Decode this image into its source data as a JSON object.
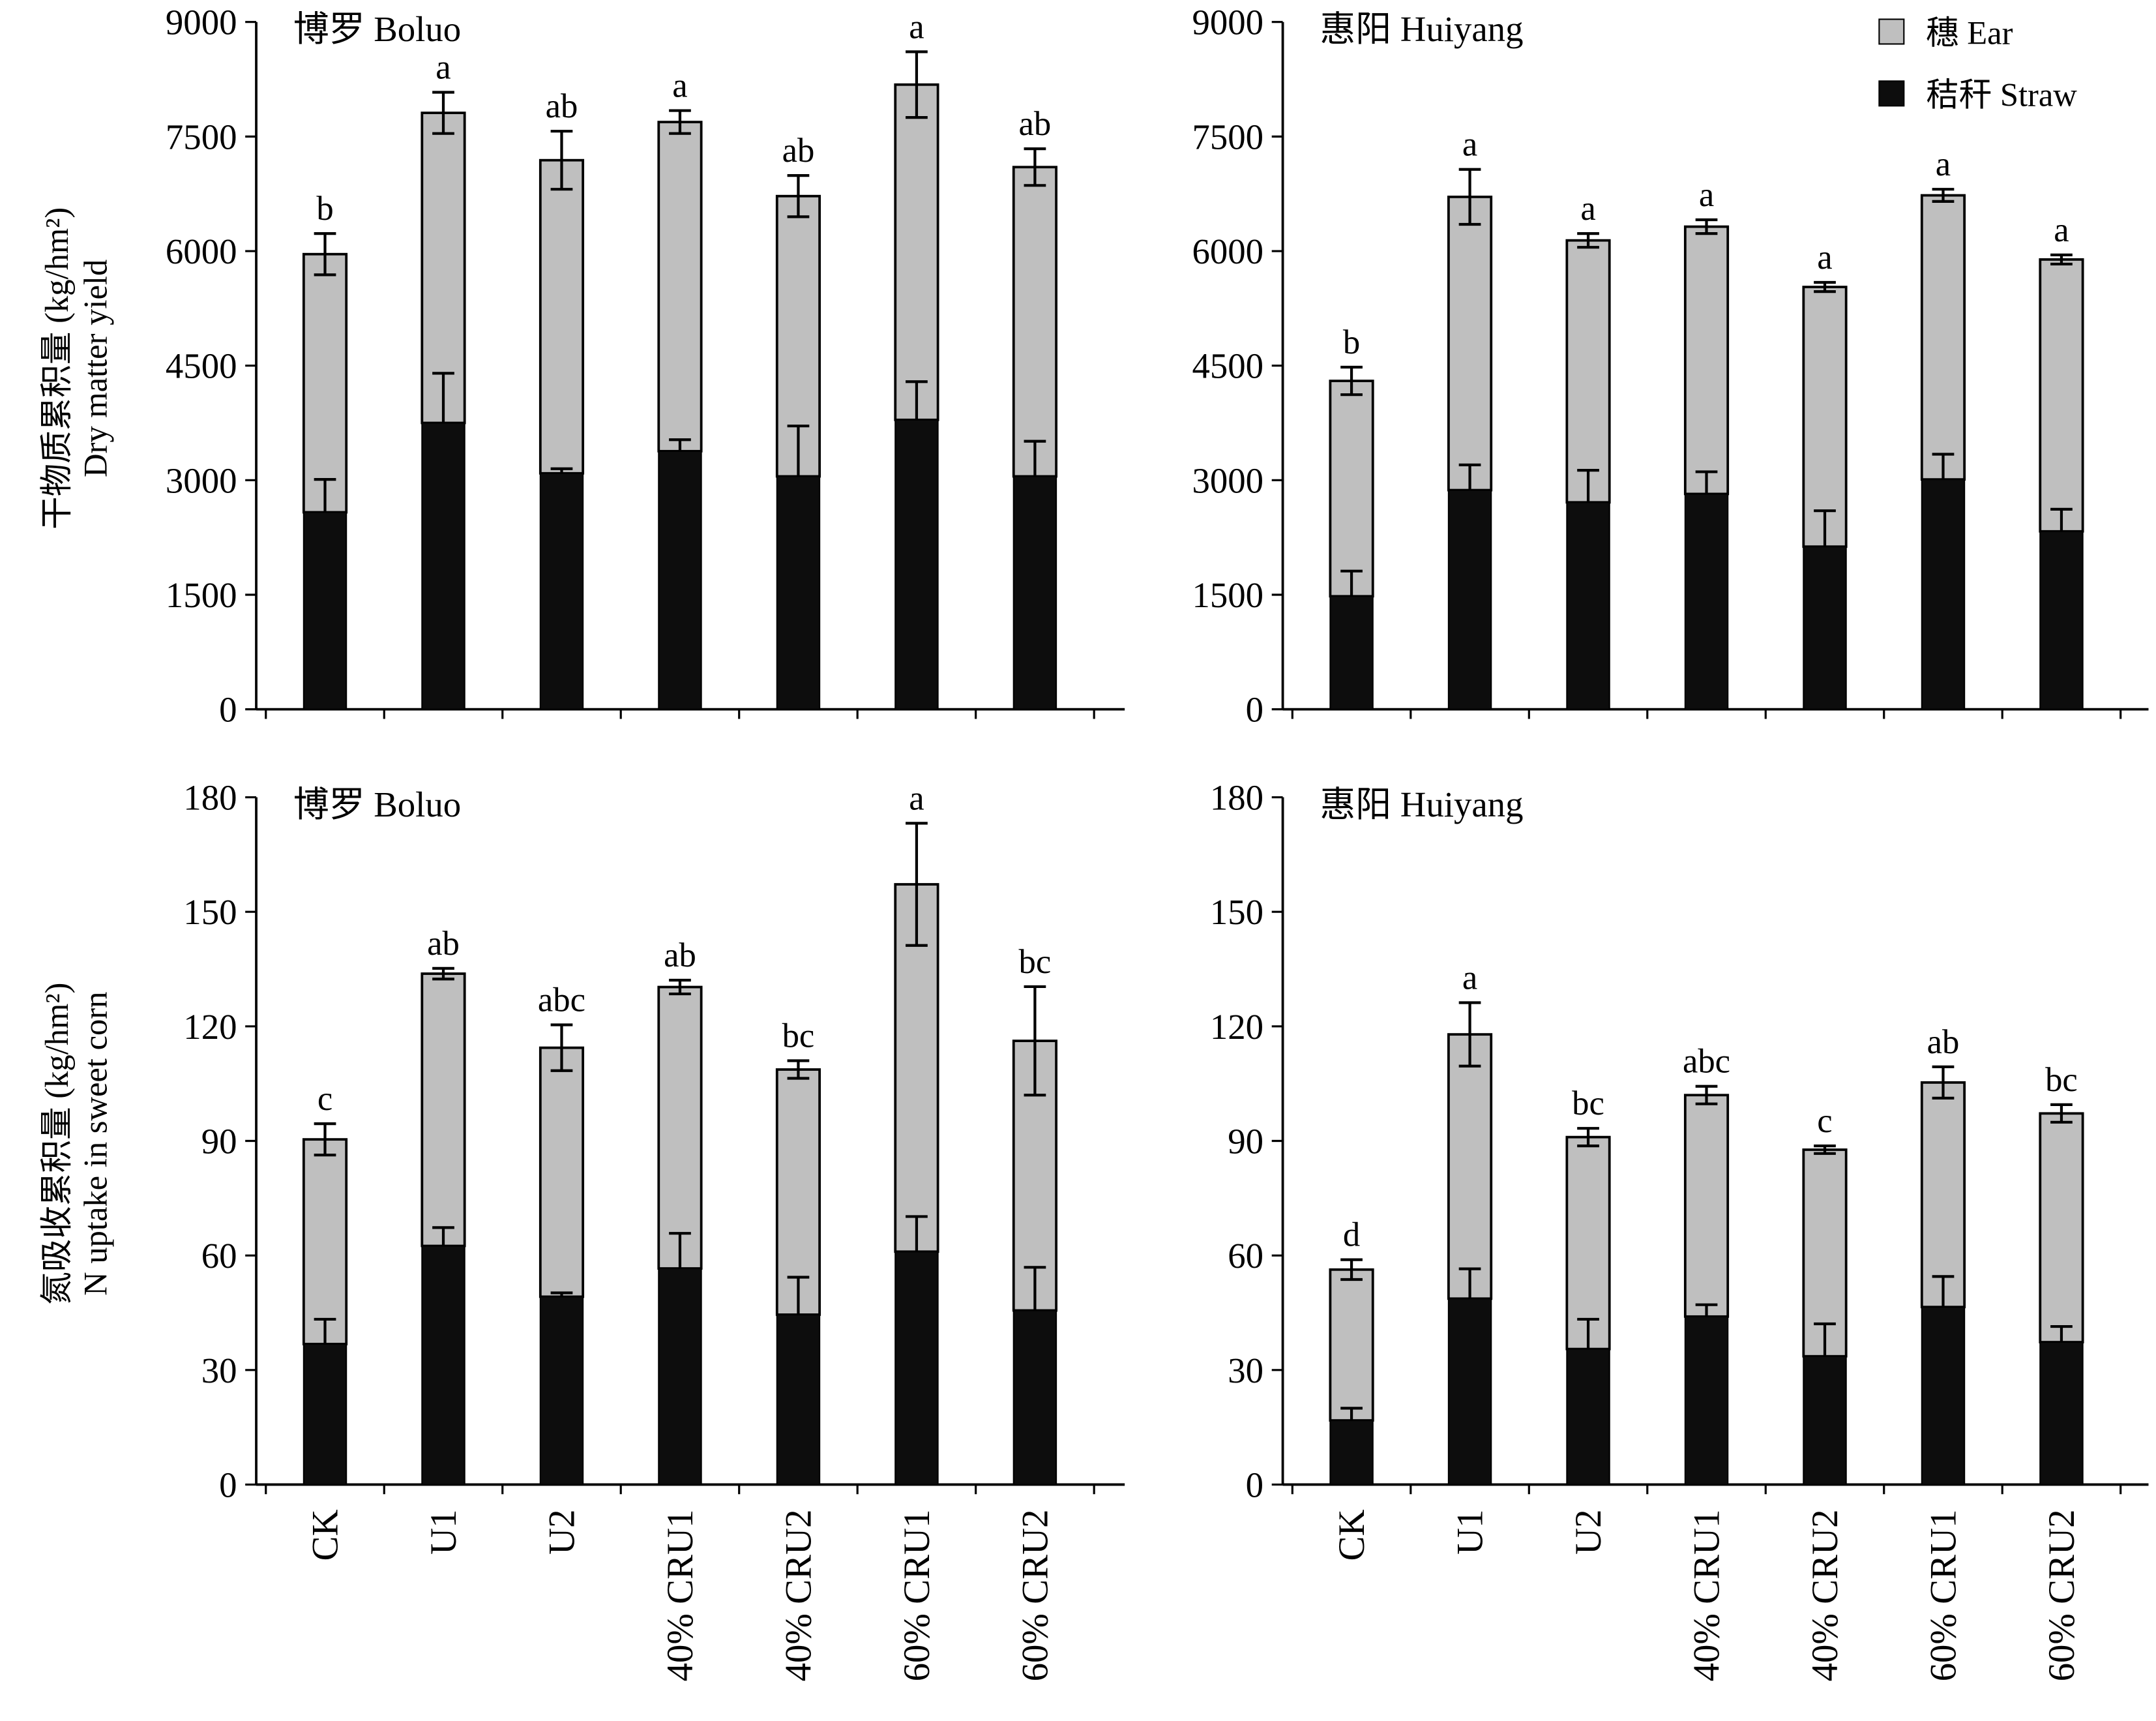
{
  "figure": {
    "ylabel_top_cn": "干物质累积量 (kg/hm²)",
    "ylabel_top_en": "Dry matter yield",
    "ylabel_bottom_cn": "氮吸收累积量 (kg/hm²)",
    "ylabel_bottom_en": "N uptake in sweet corn",
    "legend": [
      {
        "key": "ear",
        "label": "穗 Ear",
        "color": "#bfbfbf"
      },
      {
        "key": "straw",
        "label": "秸秆 Straw",
        "color": "#0d0d0d"
      }
    ]
  },
  "chart_data": [
    {
      "type": "bar",
      "stacked": true,
      "panel": "top-left",
      "title": "博罗 Boluo",
      "categories": [
        "CK",
        "U1",
        "U2",
        "40% CRU1",
        "40% CRU2",
        "60% CRU1",
        "60% CRU2"
      ],
      "yticks": [
        0,
        1500,
        3000,
        4500,
        6000,
        7500,
        9000
      ],
      "ylim": [
        0,
        9000
      ],
      "straw": [
        2580,
        3750,
        3090,
        3380,
        3050,
        3790,
        3050
      ],
      "straw_err": [
        430,
        650,
        60,
        150,
        660,
        500,
        460
      ],
      "total": [
        5960,
        7810,
        7190,
        7690,
        6720,
        8180,
        7100
      ],
      "total_err": [
        270,
        270,
        380,
        150,
        270,
        430,
        240
      ],
      "letters": [
        "b",
        "a",
        "ab",
        "a",
        "ab",
        "a",
        "ab"
      ]
    },
    {
      "type": "bar",
      "stacked": true,
      "panel": "top-right",
      "title": "惠阳 Huiyang",
      "categories": [
        "CK",
        "U1",
        "U2",
        "40% CRU1",
        "40% CRU2",
        "60% CRU1",
        "60% CRU2"
      ],
      "yticks": [
        0,
        1500,
        3000,
        4500,
        6000,
        7500,
        9000
      ],
      "ylim": [
        0,
        9000
      ],
      "straw": [
        1480,
        2870,
        2710,
        2820,
        2130,
        3010,
        2330
      ],
      "straw_err": [
        330,
        330,
        420,
        290,
        470,
        330,
        290
      ],
      "total": [
        4300,
        6710,
        6140,
        6320,
        5530,
        6730,
        5890
      ],
      "total_err": [
        180,
        360,
        90,
        90,
        60,
        80,
        60
      ],
      "letters": [
        "b",
        "a",
        "a",
        "a",
        "a",
        "a",
        "a"
      ]
    },
    {
      "type": "bar",
      "stacked": true,
      "panel": "bottom-left",
      "title": "博罗 Boluo",
      "categories": [
        "CK",
        "U1",
        "U2",
        "40% CRU1",
        "40% CRU2",
        "60% CRU1",
        "60% CRU2"
      ],
      "yticks": [
        0,
        30,
        60,
        90,
        120,
        150,
        180
      ],
      "ylim": [
        0,
        180
      ],
      "straw": [
        36.8,
        62.5,
        49.2,
        56.6,
        44.5,
        61.0,
        45.6
      ],
      "straw_err": [
        6.5,
        4.8,
        1.0,
        9.2,
        9.8,
        9.2,
        11.3
      ],
      "total": [
        90.4,
        133.8,
        114.4,
        130.3,
        108.7,
        157.2,
        116.2
      ],
      "total_err": [
        4.1,
        1.4,
        6.0,
        1.8,
        2.3,
        16.0,
        14.2
      ],
      "letters": [
        "c",
        "ab",
        "abc",
        "ab",
        "bc",
        "a",
        "bc"
      ]
    },
    {
      "type": "bar",
      "stacked": true,
      "panel": "bottom-right",
      "title": "惠阳 Huiyang",
      "categories": [
        "CK",
        "U1",
        "U2",
        "40% CRU1",
        "40% CRU2",
        "60% CRU1",
        "60% CRU2"
      ],
      "yticks": [
        0,
        30,
        60,
        90,
        120,
        150,
        180
      ],
      "ylim": [
        0,
        180
      ],
      "straw": [
        16.8,
        48.7,
        35.5,
        44.0,
        33.6,
        46.5,
        37.3
      ],
      "straw_err": [
        3.2,
        7.8,
        7.8,
        3.1,
        8.5,
        8.0,
        4.1
      ],
      "total": [
        56.3,
        117.9,
        91.0,
        102.0,
        87.7,
        105.3,
        97.2
      ],
      "total_err": [
        2.6,
        8.3,
        2.3,
        2.3,
        1.0,
        4.1,
        2.3
      ],
      "letters": [
        "d",
        "a",
        "bc",
        "abc",
        "c",
        "ab",
        "bc"
      ]
    }
  ]
}
